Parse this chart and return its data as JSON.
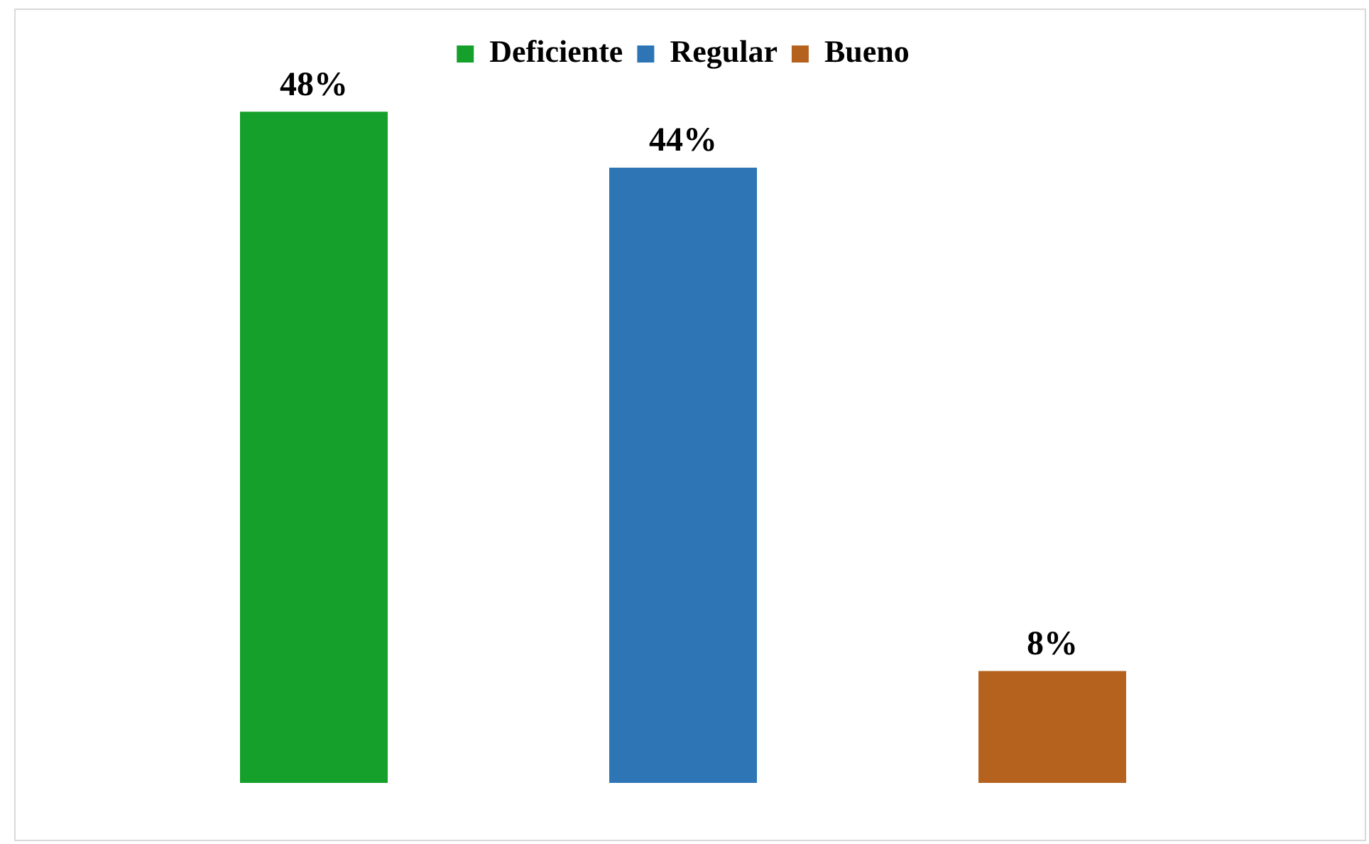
{
  "chart_data": {
    "type": "bar",
    "categories": [
      null,
      null,
      null
    ],
    "stacked": true,
    "series": [
      {
        "name": "Deficiente",
        "color": "#14a02a",
        "values": [
          48,
          null,
          null
        ],
        "value_labels": [
          "48%",
          null,
          null
        ]
      },
      {
        "name": "Regular",
        "color": "#2e75b6",
        "values": [
          null,
          44,
          null
        ],
        "value_labels": [
          null,
          "44%",
          null
        ]
      },
      {
        "name": "Bueno",
        "color": "#b5621f",
        "values": [
          null,
          null,
          8
        ],
        "value_labels": [
          null,
          null,
          "8%"
        ]
      }
    ],
    "legend": "top"
  }
}
